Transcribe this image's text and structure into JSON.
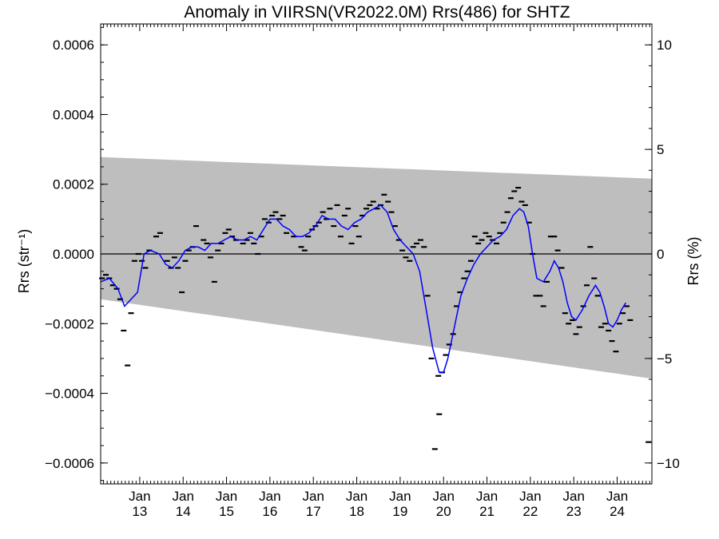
{
  "chart_data": {
    "type": "scatter",
    "title": "Anomaly in VIIRSN(VR2022.0M) Rrs(486) for SHTZ",
    "ylabel_left": "Rrs (str⁻¹)",
    "ylabel_right": "Rrs (%)",
    "xlabel": "",
    "x_month_label": "Jan",
    "x_tick_labels": [
      "13",
      "14",
      "15",
      "16",
      "17",
      "18",
      "19",
      "20",
      "21",
      "22",
      "23",
      "24"
    ],
    "xlim": [
      2012.1,
      2024.8
    ],
    "ylim_left": [
      -0.00066,
      0.00066
    ],
    "ylim_right": [
      -11.0,
      11.0
    ],
    "y_tick_labels_left": [
      "−0.0006",
      "−0.0004",
      "−0.0002",
      "0.0000",
      "0.0002",
      "0.0004",
      "0.0006"
    ],
    "y_tick_values_left": [
      -0.0006,
      -0.0004,
      -0.0002,
      0.0,
      0.0002,
      0.0004,
      0.0006
    ],
    "y_tick_labels_right": [
      "−10",
      "−5",
      "0",
      "5",
      "10"
    ],
    "y_tick_values_right": [
      -10,
      -5,
      0,
      5,
      10
    ],
    "zero_line": 0.0,
    "band": {
      "color": "#bebebe",
      "upper": [
        [
          2012.1,
          0.000278
        ],
        [
          2024.8,
          0.000216
        ]
      ],
      "lower": [
        [
          2012.1,
          -0.00013
        ],
        [
          2024.8,
          -0.000358
        ]
      ]
    },
    "series": [
      {
        "style": "markers",
        "color": "#000000",
        "points": [
          [
            2012.13,
            -7e-05
          ],
          [
            2012.22,
            -6e-05
          ],
          [
            2012.3,
            -7e-05
          ],
          [
            2012.38,
            -9e-05
          ],
          [
            2012.47,
            -0.0001
          ],
          [
            2012.55,
            -0.00013
          ],
          [
            2012.63,
            -0.00022
          ],
          [
            2012.72,
            -0.00032
          ],
          [
            2012.8,
            -0.00017
          ],
          [
            2012.88,
            -2e-05
          ],
          [
            2012.97,
            0.0
          ],
          [
            2013.05,
            -2e-05
          ],
          [
            2013.13,
            -4e-05
          ],
          [
            2013.22,
            1e-05
          ],
          [
            2013.38,
            5e-05
          ],
          [
            2013.47,
            6e-05
          ],
          [
            2013.63,
            -2e-05
          ],
          [
            2013.72,
            -4e-05
          ],
          [
            2013.8,
            -1e-05
          ],
          [
            2013.88,
            -4e-05
          ],
          [
            2013.97,
            -0.00011
          ],
          [
            2014.05,
            -2e-05
          ],
          [
            2014.13,
            1e-05
          ],
          [
            2014.22,
            2e-05
          ],
          [
            2014.3,
            8e-05
          ],
          [
            2014.47,
            4e-05
          ],
          [
            2014.55,
            3e-05
          ],
          [
            2014.63,
            -1e-05
          ],
          [
            2014.72,
            -8e-05
          ],
          [
            2014.8,
            1e-05
          ],
          [
            2014.88,
            3e-05
          ],
          [
            2014.97,
            6e-05
          ],
          [
            2015.05,
            7e-05
          ],
          [
            2015.13,
            5e-05
          ],
          [
            2015.22,
            4e-05
          ],
          [
            2015.38,
            3e-05
          ],
          [
            2015.47,
            4e-05
          ],
          [
            2015.55,
            6e-05
          ],
          [
            2015.63,
            3e-05
          ],
          [
            2015.72,
            0.0
          ],
          [
            2015.8,
            5e-05
          ],
          [
            2015.88,
            0.0001
          ],
          [
            2015.97,
            9e-05
          ],
          [
            2016.05,
            0.00011
          ],
          [
            2016.13,
            0.00012
          ],
          [
            2016.22,
            0.0001
          ],
          [
            2016.3,
            0.00011
          ],
          [
            2016.38,
            6e-05
          ],
          [
            2016.55,
            5e-05
          ],
          [
            2016.72,
            2e-05
          ],
          [
            2016.8,
            1e-05
          ],
          [
            2016.88,
            5e-05
          ],
          [
            2016.97,
            7e-05
          ],
          [
            2017.05,
            8e-05
          ],
          [
            2017.13,
            9e-05
          ],
          [
            2017.22,
            0.00012
          ],
          [
            2017.3,
            0.0001
          ],
          [
            2017.38,
            0.00013
          ],
          [
            2017.47,
            8e-05
          ],
          [
            2017.55,
            0.00014
          ],
          [
            2017.63,
            5e-05
          ],
          [
            2017.72,
            0.00011
          ],
          [
            2017.8,
            0.00013
          ],
          [
            2017.88,
            3e-05
          ],
          [
            2017.97,
            8e-05
          ],
          [
            2018.05,
            5e-05
          ],
          [
            2018.13,
            0.00011
          ],
          [
            2018.22,
            0.00013
          ],
          [
            2018.3,
            0.00014
          ],
          [
            2018.38,
            0.00015
          ],
          [
            2018.47,
            0.00013
          ],
          [
            2018.55,
            0.00014
          ],
          [
            2018.63,
            0.00017
          ],
          [
            2018.72,
            0.00015
          ],
          [
            2018.8,
            0.00012
          ],
          [
            2018.88,
            8e-05
          ],
          [
            2018.97,
            4e-05
          ],
          [
            2019.05,
            1e-05
          ],
          [
            2019.13,
            -1e-05
          ],
          [
            2019.22,
            -2e-05
          ],
          [
            2019.3,
            2e-05
          ],
          [
            2019.38,
            3e-05
          ],
          [
            2019.47,
            4e-05
          ],
          [
            2019.55,
            2e-05
          ],
          [
            2019.63,
            -0.00012
          ],
          [
            2019.72,
            -0.0003
          ],
          [
            2019.88,
            -0.00035
          ],
          [
            2019.97,
            -0.00034
          ],
          [
            2020.05,
            -0.00029
          ],
          [
            2020.13,
            -0.00026
          ],
          [
            2020.22,
            -0.00023
          ],
          [
            2020.3,
            -0.00015
          ],
          [
            2020.38,
            -0.00011
          ],
          [
            2020.47,
            -7e-05
          ],
          [
            2020.55,
            -5e-05
          ],
          [
            2020.63,
            -2e-05
          ],
          [
            2020.72,
            5e-05
          ],
          [
            2020.8,
            3e-05
          ],
          [
            2020.88,
            4e-05
          ],
          [
            2020.97,
            6e-05
          ],
          [
            2021.05,
            5e-05
          ],
          [
            2021.13,
            4e-05
          ],
          [
            2021.22,
            3e-05
          ],
          [
            2021.3,
            6e-05
          ],
          [
            2021.38,
            9e-05
          ],
          [
            2021.47,
            0.00012
          ],
          [
            2021.55,
            0.00016
          ],
          [
            2021.63,
            0.00018
          ],
          [
            2021.72,
            0.00019
          ],
          [
            2021.8,
            0.00015
          ],
          [
            2021.88,
            0.00014
          ],
          [
            2021.97,
            9e-05
          ],
          [
            2022.05,
            0.0
          ],
          [
            2022.13,
            -0.00012
          ],
          [
            2022.22,
            -0.00012
          ],
          [
            2022.3,
            -0.00015
          ],
          [
            2022.38,
            -8e-05
          ],
          [
            2022.47,
            5e-05
          ],
          [
            2022.55,
            5e-05
          ],
          [
            2022.63,
            1e-05
          ],
          [
            2022.72,
            -4e-05
          ],
          [
            2022.8,
            -0.00017
          ],
          [
            2022.88,
            -0.0002
          ],
          [
            2022.97,
            -0.00019
          ],
          [
            2023.05,
            -0.00023
          ],
          [
            2023.13,
            -0.00021
          ],
          [
            2023.22,
            -0.00015
          ],
          [
            2023.3,
            -9e-05
          ],
          [
            2023.38,
            2e-05
          ],
          [
            2023.47,
            -7e-05
          ],
          [
            2023.55,
            -0.00012
          ],
          [
            2023.63,
            -0.00021
          ],
          [
            2023.72,
            -0.0002
          ],
          [
            2023.8,
            -0.00022
          ],
          [
            2023.88,
            -0.00025
          ],
          [
            2023.97,
            -0.00028
          ],
          [
            2024.05,
            -0.0002
          ],
          [
            2024.13,
            -0.00017
          ],
          [
            2024.22,
            -0.00015
          ],
          [
            2024.72,
            -0.00054
          ],
          [
            2019.8,
            -0.00056
          ],
          [
            2019.9,
            -0.00046
          ],
          [
            2024.3,
            -0.00019
          ]
        ]
      },
      {
        "style": "line",
        "color": "#0000ff",
        "points": [
          [
            2012.1,
            -8e-05
          ],
          [
            2012.3,
            -7e-05
          ],
          [
            2012.5,
            -0.0001
          ],
          [
            2012.65,
            -0.00015
          ],
          [
            2012.8,
            -0.00013
          ],
          [
            2012.95,
            -0.00011
          ],
          [
            2013.1,
            0.0
          ],
          [
            2013.25,
            1e-05
          ],
          [
            2013.45,
            0.0
          ],
          [
            2013.6,
            -3e-05
          ],
          [
            2013.75,
            -4e-05
          ],
          [
            2013.9,
            -2e-05
          ],
          [
            2014.05,
            1e-05
          ],
          [
            2014.2,
            2e-05
          ],
          [
            2014.35,
            2e-05
          ],
          [
            2014.5,
            1e-05
          ],
          [
            2014.65,
            3e-05
          ],
          [
            2014.8,
            3e-05
          ],
          [
            2014.95,
            4e-05
          ],
          [
            2015.1,
            5e-05
          ],
          [
            2015.25,
            4e-05
          ],
          [
            2015.4,
            4e-05
          ],
          [
            2015.55,
            5e-05
          ],
          [
            2015.7,
            4e-05
          ],
          [
            2015.85,
            7e-05
          ],
          [
            2016.0,
            0.0001
          ],
          [
            2016.15,
            0.0001
          ],
          [
            2016.3,
            8e-05
          ],
          [
            2016.45,
            7e-05
          ],
          [
            2016.6,
            5e-05
          ],
          [
            2016.75,
            5e-05
          ],
          [
            2016.9,
            6e-05
          ],
          [
            2017.05,
            8e-05
          ],
          [
            2017.2,
            0.00011
          ],
          [
            2017.35,
            0.0001
          ],
          [
            2017.5,
            0.0001
          ],
          [
            2017.65,
            8e-05
          ],
          [
            2017.8,
            7e-05
          ],
          [
            2017.95,
            9e-05
          ],
          [
            2018.1,
            0.0001
          ],
          [
            2018.25,
            0.00012
          ],
          [
            2018.4,
            0.00013
          ],
          [
            2018.55,
            0.00014
          ],
          [
            2018.7,
            0.00012
          ],
          [
            2018.85,
            7e-05
          ],
          [
            2019.0,
            4e-05
          ],
          [
            2019.15,
            2e-05
          ],
          [
            2019.3,
            0.0
          ],
          [
            2019.45,
            -5e-05
          ],
          [
            2019.6,
            -0.00016
          ],
          [
            2019.75,
            -0.00027
          ],
          [
            2019.9,
            -0.00034
          ],
          [
            2020.0,
            -0.00034
          ],
          [
            2020.1,
            -0.0003
          ],
          [
            2020.25,
            -0.00021
          ],
          [
            2020.4,
            -0.00012
          ],
          [
            2020.55,
            -7e-05
          ],
          [
            2020.7,
            -3e-05
          ],
          [
            2020.85,
            0.0
          ],
          [
            2021.0,
            2e-05
          ],
          [
            2021.15,
            4e-05
          ],
          [
            2021.3,
            5e-05
          ],
          [
            2021.45,
            7e-05
          ],
          [
            2021.6,
            0.00011
          ],
          [
            2021.75,
            0.00013
          ],
          [
            2021.85,
            0.00012
          ],
          [
            2021.95,
            8e-05
          ],
          [
            2022.05,
            0.0
          ],
          [
            2022.15,
            -7e-05
          ],
          [
            2022.3,
            -8e-05
          ],
          [
            2022.45,
            -5e-05
          ],
          [
            2022.55,
            -2e-05
          ],
          [
            2022.65,
            -4e-05
          ],
          [
            2022.75,
            -8e-05
          ],
          [
            2022.85,
            -0.00014
          ],
          [
            2022.95,
            -0.00018
          ],
          [
            2023.05,
            -0.00019
          ],
          [
            2023.2,
            -0.00016
          ],
          [
            2023.35,
            -0.00012
          ],
          [
            2023.5,
            -9e-05
          ],
          [
            2023.6,
            -0.00011
          ],
          [
            2023.7,
            -0.00015
          ],
          [
            2023.8,
            -0.0002
          ],
          [
            2023.9,
            -0.00021
          ],
          [
            2024.0,
            -0.00019
          ],
          [
            2024.1,
            -0.00016
          ],
          [
            2024.2,
            -0.00014
          ]
        ]
      }
    ]
  }
}
